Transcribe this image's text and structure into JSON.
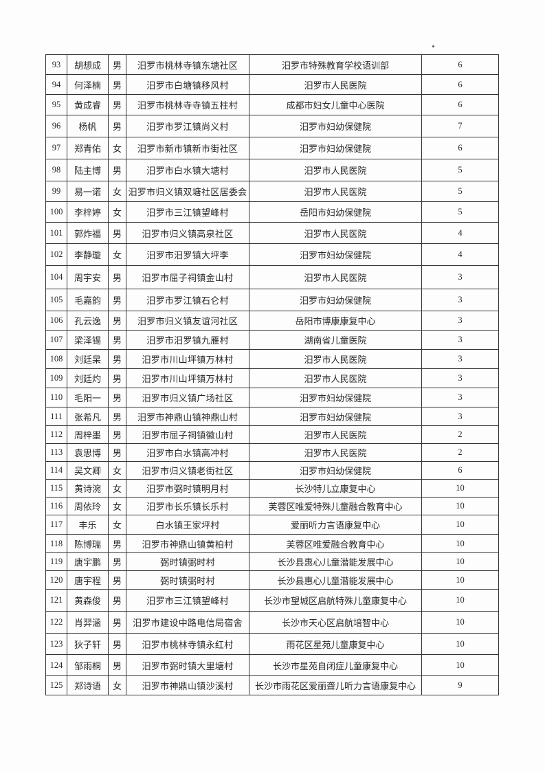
{
  "table": {
    "rows": [
      {
        "no": "93",
        "name": "胡想成",
        "gender": "男",
        "address": "汨罗市桃林寺镇东塘社区",
        "institution": "汨罗市特殊教育学校语训部",
        "count": "6"
      },
      {
        "no": "94",
        "name": "何泽楠",
        "gender": "男",
        "address": "汨罗市白塘镇移风村",
        "institution": "汨罗市人民医院",
        "count": "6"
      },
      {
        "no": "95",
        "name": "黄成睿",
        "gender": "男",
        "address": "汨罗市桃林寺寺镇五柱村",
        "institution": "成都市妇女儿童中心医院",
        "count": "6"
      },
      {
        "no": "96",
        "name": "杨帆",
        "gender": "男",
        "address": "汨罗市罗江镇尚义村",
        "institution": "汨罗市妇幼保健院",
        "count": "7"
      },
      {
        "no": "97",
        "name": "郑青佑",
        "gender": "女",
        "address": "汨罗市新市镇新市街社区",
        "institution": "汨罗市妇幼保健院",
        "count": "6"
      },
      {
        "no": "98",
        "name": "陆主博",
        "gender": "男",
        "address": "汨罗市白水镇大塘村",
        "institution": "汨罗市人民医院",
        "count": "5"
      },
      {
        "no": "99",
        "name": "易一诺",
        "gender": "女",
        "address": "汨罗市归义镇双塘社区居委会",
        "institution": "汨罗市人民医院",
        "count": "5"
      },
      {
        "no": "100",
        "name": "李梓婷",
        "gender": "女",
        "address": "汨罗市三江镇望峰村",
        "institution": "岳阳市妇幼保健院",
        "count": "5"
      },
      {
        "no": "101",
        "name": "郭炸福",
        "gender": "男",
        "address": "汨罗市归义镇高泉社区",
        "institution": "汨罗市人民医院",
        "count": "4"
      },
      {
        "no": "102",
        "name": "李静璇",
        "gender": "女",
        "address": "汨罗市汨罗镇大坪李",
        "institution": "汨罗市妇幼保健院",
        "count": "4"
      },
      {
        "no": "104",
        "name": "周宇安",
        "gender": "男",
        "address": "汨罗市屈子祠镇金山村",
        "institution": "汨罗市人民医院",
        "count": "3"
      },
      {
        "no": "105",
        "name": "毛嘉韵",
        "gender": "男",
        "address": "汨罗市罗江镇石仑村",
        "institution": "汨罗市妇幼保健院",
        "count": "3"
      },
      {
        "no": "106",
        "name": "孔云逸",
        "gender": "男",
        "address": "汨罗市归义镇友谊河社区",
        "institution": "岳阳市博康康复中心",
        "count": "3"
      },
      {
        "no": "107",
        "name": "梁泽锡",
        "gender": "男",
        "address": "汨罗市汨罗镇九雁村",
        "institution": "湖南省儿童医院",
        "count": "3"
      },
      {
        "no": "108",
        "name": "刘廷杲",
        "gender": "男",
        "address": "汨罗市川山坪镇万林村",
        "institution": "汨罗市人民医院",
        "count": "3"
      },
      {
        "no": "109",
        "name": "刘廷灼",
        "gender": "男",
        "address": "汨罗市川山坪镇万林村",
        "institution": "汨罗市人民医院",
        "count": "3"
      },
      {
        "no": "110",
        "name": "毛阳一",
        "gender": "男",
        "address": "汨罗市归义镇广场社区",
        "institution": "汨罗市妇幼保健院",
        "count": "3"
      },
      {
        "no": "111",
        "name": "张希凡",
        "gender": "男",
        "address": "汨罗市神鼎山镇神鼎山村",
        "institution": "汨罗市妇幼保健院",
        "count": "3"
      },
      {
        "no": "112",
        "name": "周梓墨",
        "gender": "男",
        "address": "汨罗市屈子祠镇徽山村",
        "institution": "汨罗市人民医院",
        "count": "2"
      },
      {
        "no": "113",
        "name": "袁思博",
        "gender": "男",
        "address": "汨罗市白水镇高冲村",
        "institution": "汨罗市人民医院",
        "count": "2"
      },
      {
        "no": "114",
        "name": "吴文卿",
        "gender": "女",
        "address": "汨罗市归义镇老街社区",
        "institution": "汨罗市妇幼保健院",
        "count": "6"
      },
      {
        "no": "115",
        "name": "黄诗涴",
        "gender": "女",
        "address": "汨罗市弼时镇明月村",
        "institution": "长沙特儿立康复中心",
        "count": "10"
      },
      {
        "no": "116",
        "name": "周依玲",
        "gender": "女",
        "address": "汨罗市长乐镇长乐村",
        "institution": "芙蓉区唯爱特殊儿童融合教育中心",
        "count": "10"
      },
      {
        "no": "117",
        "name": "丰乐",
        "gender": "女",
        "address": "白水镇王家坪村",
        "institution": "爱丽听力言语康复中心",
        "count": "10"
      },
      {
        "no": "118",
        "name": "陈博瑞",
        "gender": "男",
        "address": "汨罗市神鼎山镇黄柏村",
        "institution": "芙蓉区唯爱融合教育中心",
        "count": "10"
      },
      {
        "no": "119",
        "name": "唐宇鹏",
        "gender": "男",
        "address": "弼时镇弼时村",
        "institution": "长沙县惠心儿童潜能发展中心",
        "count": "10"
      },
      {
        "no": "120",
        "name": "唐宇程",
        "gender": "男",
        "address": "弼时镇弼时村",
        "institution": "长沙县惠心儿童潜能发展中心",
        "count": "10"
      },
      {
        "no": "121",
        "name": "黄森俊",
        "gender": "男",
        "address": "汨罗市三江镇望峰村",
        "institution": "长沙市望城区启航特殊儿童康复中心",
        "count": "10"
      },
      {
        "no": "122",
        "name": "肖羿涵",
        "gender": "男",
        "address": "汨罗市建设中路电信局宿舍",
        "institution": "长沙市天心区启航培智中心",
        "count": "10"
      },
      {
        "no": "123",
        "name": "狄子轩",
        "gender": "男",
        "address": "汨罗市桃林寺镇永红村",
        "institution": "雨花区星苑儿童康复中心",
        "count": "10"
      },
      {
        "no": "124",
        "name": "邹雨桐",
        "gender": "男",
        "address": "汨罗市弼时镇大里塘村",
        "institution": "长沙市星苑自闭症儿童康复中心",
        "count": "10"
      },
      {
        "no": "125",
        "name": "郑诗语",
        "gender": "女",
        "address": "汨罗市神鼎山镇沙溪村",
        "institution": "长沙市雨花区爱丽聋儿听力言语康复中心",
        "count": "9"
      }
    ]
  }
}
